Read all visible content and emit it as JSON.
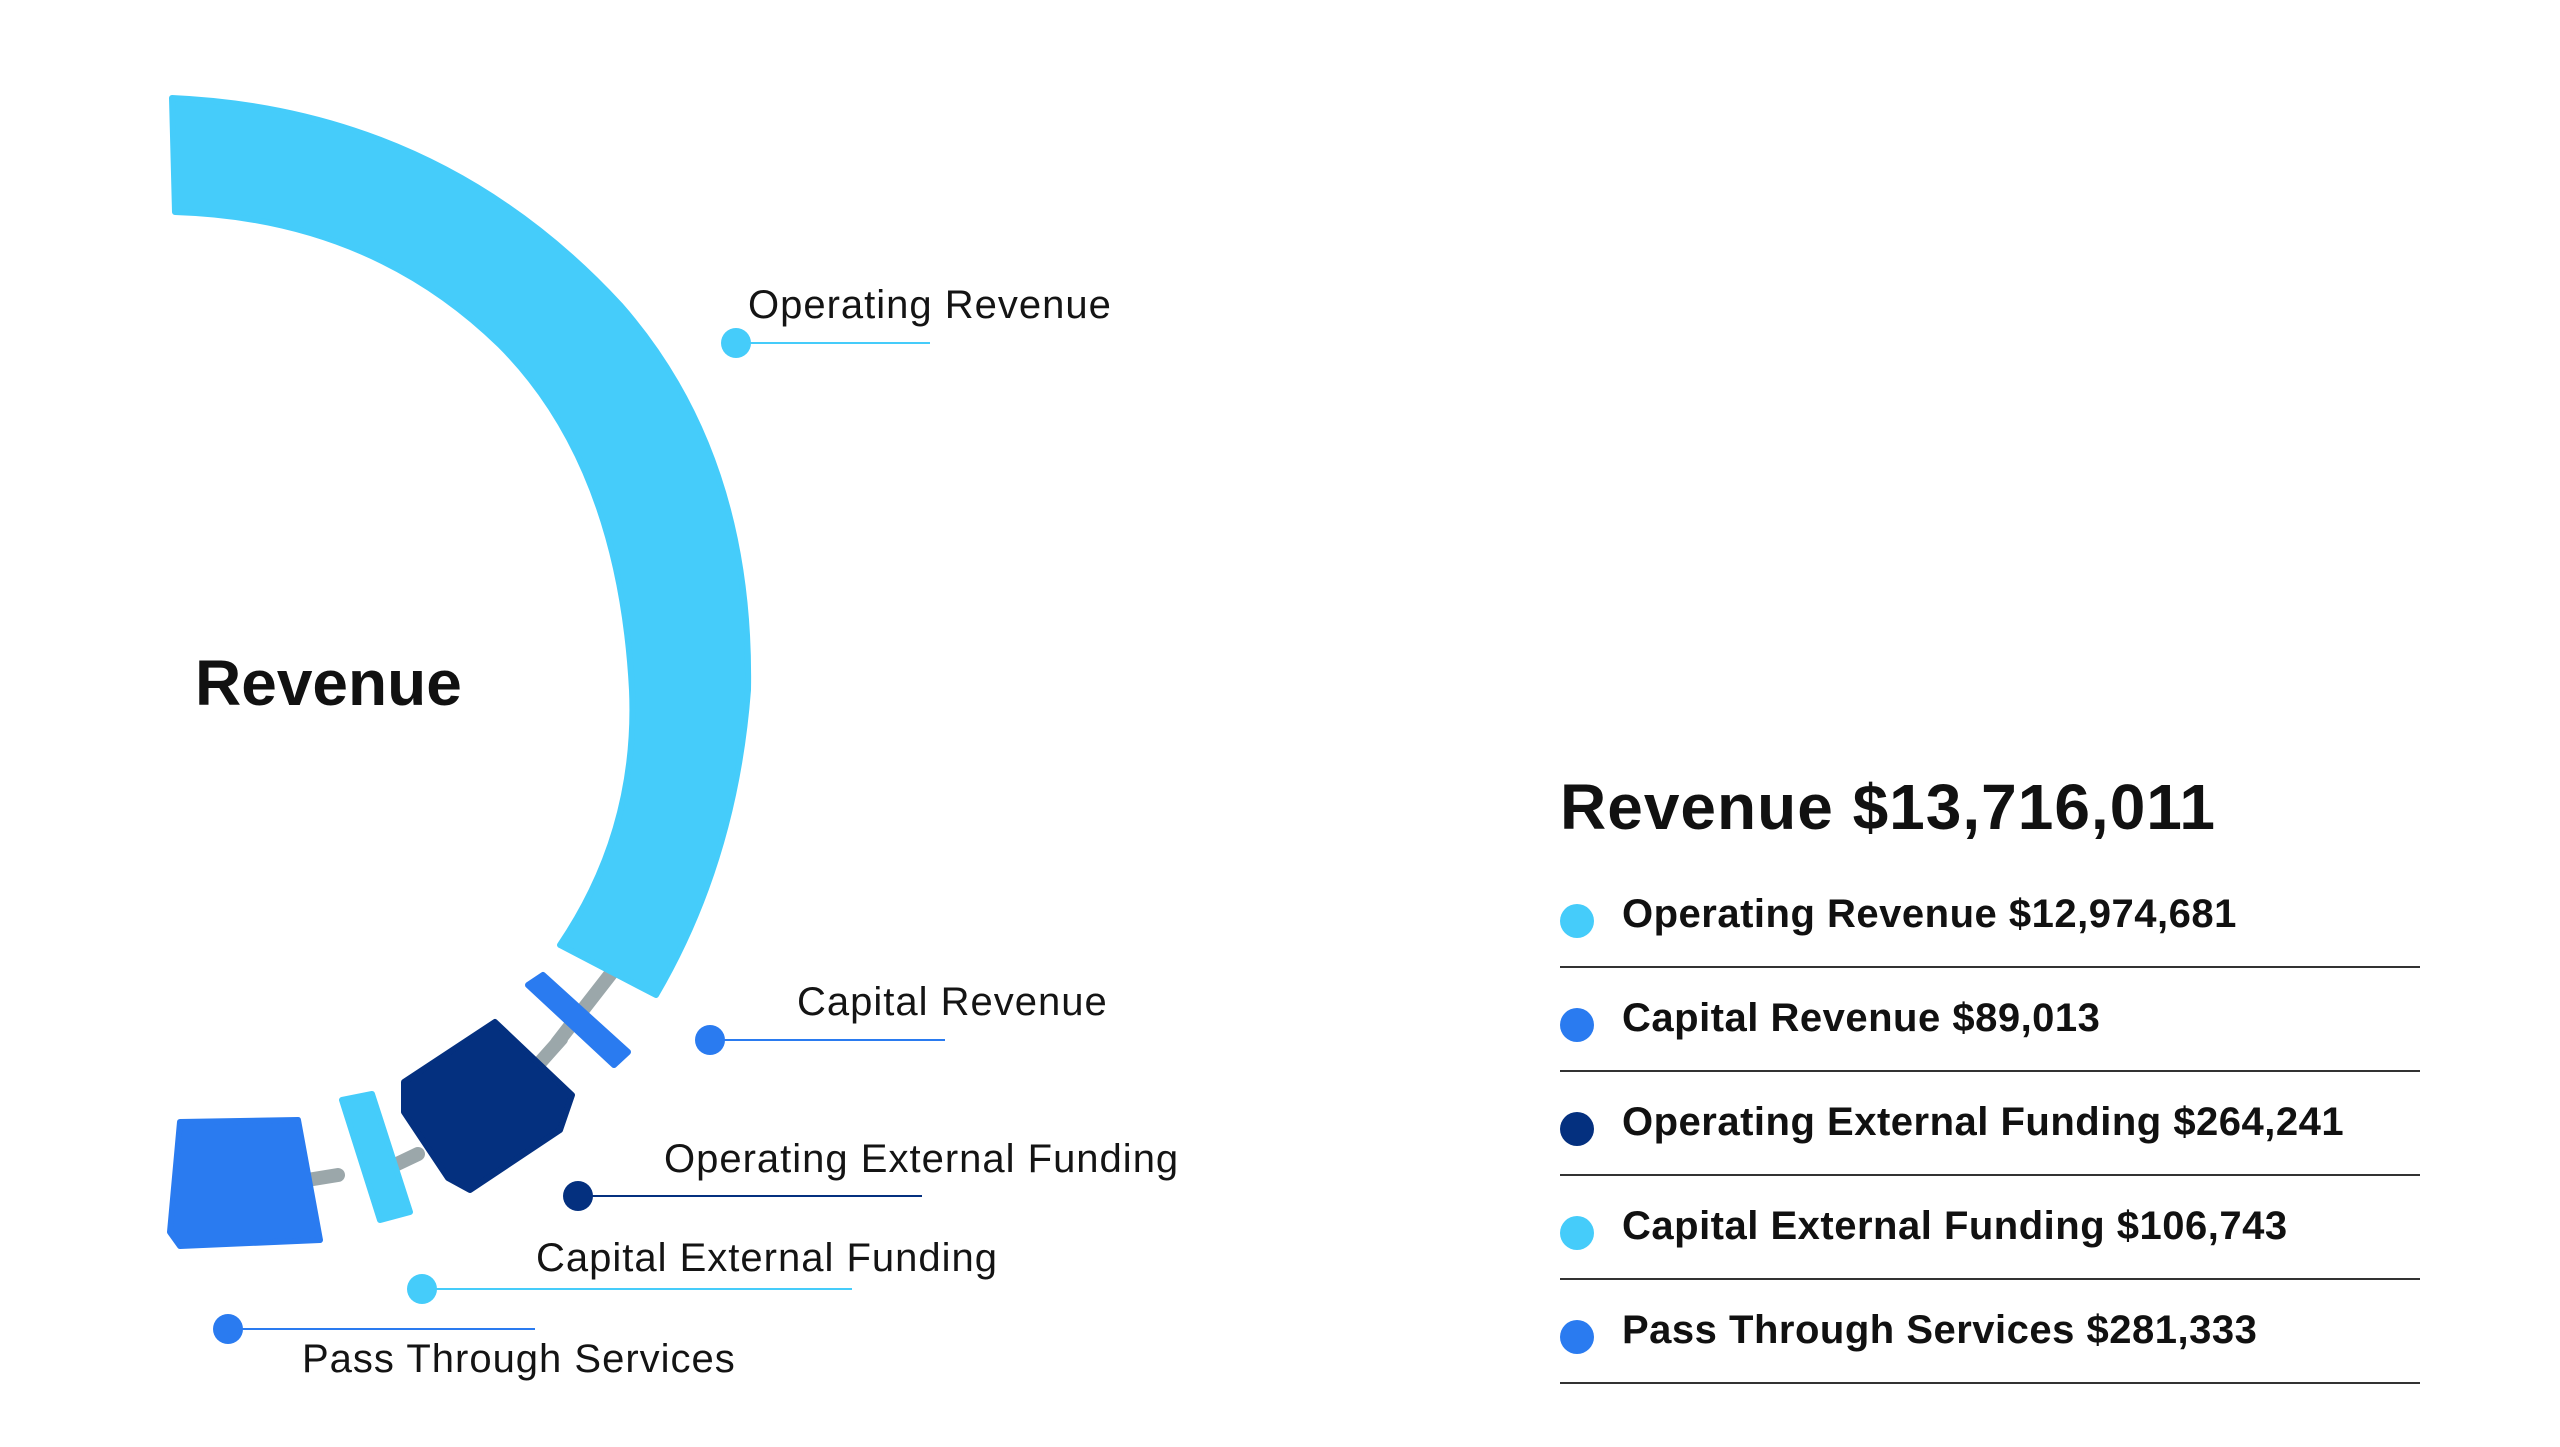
{
  "chart_data": {
    "type": "pie",
    "title": "Revenue",
    "total_label": "Revenue",
    "total_value": "$13,716,011",
    "categories": [
      "Operating Revenue",
      "Capital Revenue",
      "Operating External Funding",
      "Capital External Funding",
      "Pass Through Services"
    ],
    "values": [
      12974681,
      89013,
      264241,
      106743,
      281333
    ],
    "value_labels": [
      "$12,974,681",
      "$89,013",
      "$264,241",
      "$106,743",
      "$281,333"
    ],
    "colors": [
      "#45CCFA",
      "#2A7BF0",
      "#04307F",
      "#45CCFA",
      "#2A7BF0"
    ],
    "connector_color": "#9BA7AA",
    "legend_position": "right"
  }
}
